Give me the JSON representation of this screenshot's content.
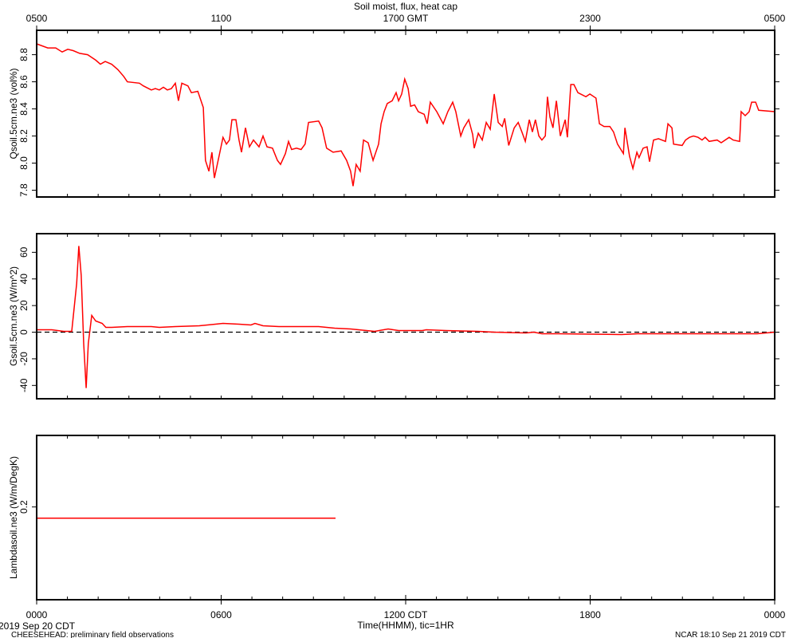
{
  "chart_data": [
    {
      "type": "line",
      "title": "Soil moist, flux, heat cap",
      "ylabel": "Qsoil.5cm.ne3 (vol%)",
      "xlim": [
        0,
        24
      ],
      "x2ticks": [
        {
          "value": 0,
          "label": "0500"
        },
        {
          "value": 6,
          "label": "1100"
        },
        {
          "value": 12,
          "label": "1700 GMT"
        },
        {
          "value": 18,
          "label": "2300"
        },
        {
          "value": 24,
          "label": "0500"
        }
      ],
      "xminor_ticks": [
        0,
        1,
        2,
        3,
        4,
        5,
        6,
        7,
        8,
        9,
        10,
        11,
        12,
        13,
        14,
        15,
        16,
        17,
        18,
        19,
        20,
        21,
        22,
        23,
        24
      ],
      "ylim": [
        7.75,
        8.98
      ],
      "yticks": [
        7.8,
        {
          "value": 8,
          "label": "8.0"
        },
        8.2,
        8.4,
        8.6,
        8.8
      ],
      "series": [
        {
          "name": "Qsoil.5cm.ne3",
          "color": "#ff0000",
          "x": [
            0,
            0.36,
            0.62,
            0.83,
            1.01,
            1.19,
            1.4,
            1.66,
            1.92,
            2.07,
            2.23,
            2.44,
            2.64,
            2.83,
            2.95,
            3.34,
            3.47,
            3.73,
            3.86,
            3.99,
            4.12,
            4.25,
            4.38,
            4.51,
            4.61,
            4.72,
            4.92,
            5.03,
            5.24,
            5.42,
            5.49,
            5.6,
            5.7,
            5.78,
            5.93,
            6.06,
            6.17,
            6.27,
            6.35,
            6.48,
            6.58,
            6.66,
            6.79,
            6.92,
            7.05,
            7.23,
            7.36,
            7.49,
            7.67,
            7.83,
            7.93,
            8.09,
            8.19,
            8.29,
            8.45,
            8.6,
            8.73,
            8.84,
            9.17,
            9.28,
            9.43,
            9.64,
            9.9,
            10.08,
            10.21,
            10.29,
            10.39,
            10.52,
            10.63,
            10.78,
            10.94,
            11.12,
            11.2,
            11.3,
            11.4,
            11.56,
            11.69,
            11.77,
            11.87,
            11.97,
            12.08,
            12.16,
            12.29,
            12.41,
            12.6,
            12.7,
            12.8,
            13.01,
            13.22,
            13.37,
            13.53,
            13.63,
            13.79,
            13.89,
            14.05,
            14.18,
            14.23,
            14.36,
            14.49,
            14.62,
            14.75,
            14.88,
            15.01,
            15.14,
            15.22,
            15.35,
            15.53,
            15.66,
            15.78,
            15.89,
            16.02,
            16.12,
            16.22,
            16.33,
            16.43,
            16.54,
            16.61,
            16.69,
            16.79,
            16.9,
            17.03,
            17.19,
            17.26,
            17.37,
            17.47,
            17.6,
            17.86,
            17.99,
            18.19,
            18.3,
            18.45,
            18.64,
            18.76,
            18.89,
            19.08,
            19.13,
            19.28,
            19.39,
            19.52,
            19.59,
            19.72,
            19.85,
            19.93,
            20.06,
            20.22,
            20.45,
            20.53,
            20.66,
            20.71,
            20.99,
            21.1,
            21.23,
            21.36,
            21.51,
            21.64,
            21.74,
            21.87,
            22.13,
            22.26,
            22.52,
            22.65,
            22.86,
            22.91,
            23.04,
            23.17,
            23.25,
            23.38,
            23.48,
            24
          ],
          "values": [
            8.88,
            8.85,
            8.85,
            8.82,
            8.84,
            8.83,
            8.81,
            8.8,
            8.76,
            8.73,
            8.75,
            8.73,
            8.69,
            8.64,
            8.6,
            8.59,
            8.57,
            8.54,
            8.55,
            8.54,
            8.56,
            8.54,
            8.55,
            8.59,
            8.46,
            8.59,
            8.57,
            8.52,
            8.53,
            8.41,
            8.02,
            7.94,
            8.08,
            7.89,
            8.05,
            8.19,
            8.14,
            8.17,
            8.32,
            8.32,
            8.17,
            8.08,
            8.26,
            8.12,
            8.17,
            8.12,
            8.2,
            8.12,
            8.11,
            8.02,
            7.99,
            8.07,
            8.16,
            8.1,
            8.11,
            8.1,
            8.14,
            8.3,
            8.31,
            8.26,
            8.11,
            8.08,
            8.09,
            8.02,
            7.94,
            7.83,
            7.99,
            7.94,
            8.17,
            8.15,
            8.02,
            8.14,
            8.29,
            8.38,
            8.44,
            8.46,
            8.52,
            8.46,
            8.51,
            8.62,
            8.55,
            8.42,
            8.43,
            8.38,
            8.36,
            8.29,
            8.45,
            8.38,
            8.29,
            8.38,
            8.45,
            8.38,
            8.2,
            8.26,
            8.32,
            8.21,
            8.11,
            8.22,
            8.17,
            8.3,
            8.25,
            8.51,
            8.3,
            8.27,
            8.33,
            8.13,
            8.26,
            8.3,
            8.23,
            8.16,
            8.32,
            8.23,
            8.32,
            8.2,
            8.17,
            8.2,
            8.49,
            8.34,
            8.26,
            8.46,
            8.2,
            8.32,
            8.19,
            8.58,
            8.58,
            8.52,
            8.49,
            8.51,
            8.48,
            8.29,
            8.27,
            8.27,
            8.23,
            8.14,
            8.07,
            8.26,
            8.05,
            7.96,
            8.08,
            8.04,
            8.11,
            8.12,
            8.01,
            8.17,
            8.18,
            8.16,
            8.29,
            8.26,
            8.14,
            8.13,
            8.17,
            8.19,
            8.2,
            8.19,
            8.17,
            8.19,
            8.16,
            8.17,
            8.15,
            8.19,
            8.17,
            8.16,
            8.38,
            8.35,
            8.38,
            8.45,
            8.45,
            8.39,
            8.38
          ]
        }
      ]
    },
    {
      "type": "line",
      "ylabel": "Gsoil.5cm.ne3 (W/m^2)",
      "xlim": [
        0,
        24
      ],
      "ylim": [
        -50,
        74
      ],
      "yticks": [
        -40,
        -20,
        0,
        20,
        40,
        60
      ],
      "hline": 0,
      "series": [
        {
          "name": "Gsoil.5cm.ne3",
          "color": "#ff0000",
          "x": [
            0,
            0.49,
            0.88,
            1.14,
            1.22,
            1.3,
            1.37,
            1.45,
            1.53,
            1.61,
            1.68,
            1.79,
            1.92,
            2.13,
            2.25,
            2.44,
            2.95,
            3.73,
            3.99,
            4.51,
            5.29,
            5.81,
            6.06,
            6.58,
            6.97,
            7.1,
            7.36,
            7.88,
            9.17,
            9.69,
            10.21,
            10.73,
            10.99,
            11.43,
            11.77,
            12.54,
            12.67,
            13.32,
            14.36,
            14.88,
            15.91,
            16.17,
            16.43,
            16.95,
            19.02,
            19.54,
            22.13,
            23.43,
            24
          ],
          "values": [
            1.8,
            1.8,
            0.6,
            0.6,
            18.6,
            36.6,
            64.8,
            42.6,
            -8.4,
            -42,
            -8.4,
            12.6,
            8.4,
            6.6,
            3.6,
            3.6,
            4.2,
            4.2,
            3.6,
            4.2,
            4.8,
            6,
            6.6,
            6,
            5.4,
            6.6,
            4.8,
            4.2,
            4.2,
            3,
            2.4,
            1.2,
            0.6,
            2.4,
            1.2,
            1.2,
            1.8,
            1.2,
            0.6,
            0,
            -0.6,
            0,
            -1.2,
            -1.2,
            -1.8,
            -1.2,
            -1.2,
            -1.2,
            0
          ]
        }
      ]
    },
    {
      "type": "line",
      "ylabel": "Lambdasoil.ne3 (W/m/DegK)",
      "xlim": [
        0,
        24
      ],
      "ylim": [
        0.117,
        0.264
      ],
      "yticks": [
        0.2
      ],
      "xticks": [
        {
          "value": 0,
          "label": "0000"
        },
        {
          "value": 6,
          "label": "0600"
        },
        {
          "value": 12,
          "label": "1200 CDT"
        },
        {
          "value": 18,
          "label": "1800"
        },
        {
          "value": 24,
          "label": "0000"
        }
      ],
      "xlabel": "Time(HHMM), tic=1HR",
      "date_label": "2019 Sep 20 CDT",
      "footer_left": "CHEESEHEAD: preliminary field observations",
      "footer_right": "NCAR 18:10 Sep 21 2019 CDT",
      "series": [
        {
          "name": "Lambdasoil.ne3",
          "color": "#ff0000",
          "x": [
            0,
            9.72
          ],
          "values": [
            0.19,
            0.19
          ]
        }
      ]
    }
  ]
}
